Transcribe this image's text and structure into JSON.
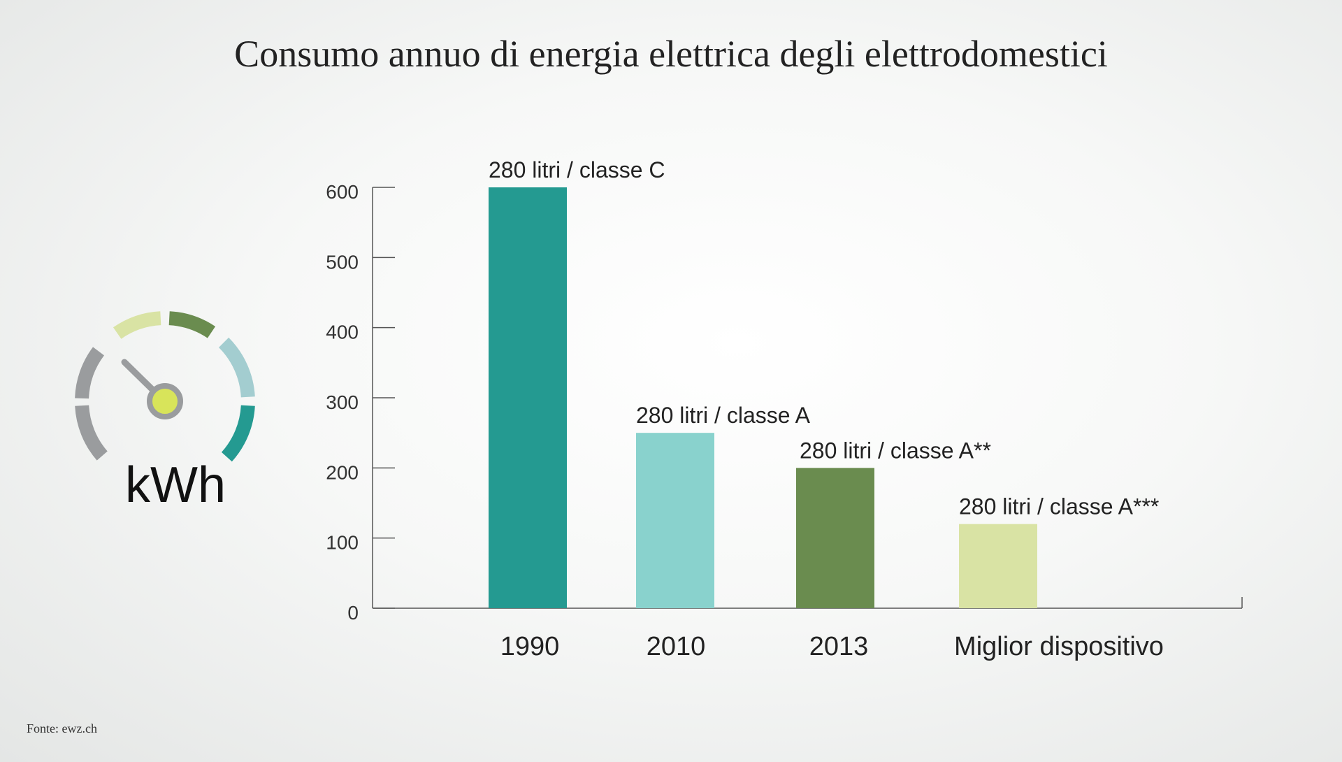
{
  "title": "Consumo annuo di energia elettrica degli elettrodomestici",
  "source": "Fonte: ewz.ch",
  "gauge": {
    "icon": "speedometer-gauge-icon",
    "unit_label": "kWh",
    "segment_colors": [
      "#9a9c9e",
      "#9a9c9e",
      "#d9e3a4",
      "#6a8c4f",
      "#a3cdd0",
      "#249a91"
    ],
    "needle_color": "#9a9c9e",
    "hub_color": "#d8e45a"
  },
  "chart_data": {
    "type": "bar",
    "title": "Consumo annuo di energia elettrica degli elettrodomestici",
    "categories": [
      "1990",
      "2010",
      "2013",
      "Miglior dispositivo"
    ],
    "values": [
      600,
      250,
      200,
      120
    ],
    "annotations": [
      "280 litri / classe C",
      "280 litri / classe A",
      "280 litri / classe A**",
      "280 litri / classe A***"
    ],
    "colors": [
      "#249a91",
      "#89d2cd",
      "#6a8c4f",
      "#d9e3a4"
    ],
    "yticks": [
      0,
      100,
      200,
      300,
      400,
      500,
      600
    ],
    "ylim": [
      0,
      600
    ],
    "xlabel": "",
    "ylabel": "",
    "grid": false,
    "legend": "none"
  }
}
